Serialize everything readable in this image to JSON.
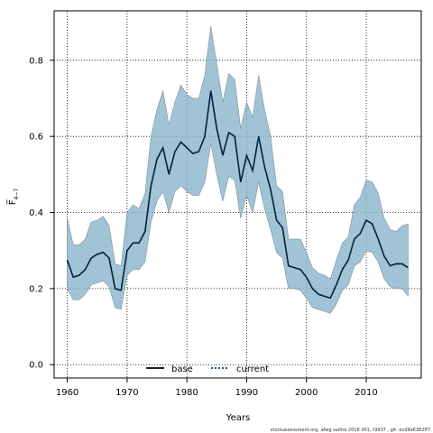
{
  "chart_data": {
    "type": "area",
    "xlabel": "Years",
    "ylabel": "F̅",
    "ylabel_sub": "4−7",
    "xlim": [
      1957.8,
      2019.2
    ],
    "ylim": [
      -0.035,
      0.93
    ],
    "xticks": [
      1960,
      1970,
      1980,
      1990,
      2000,
      2010
    ],
    "yticks": [
      0.0,
      0.2,
      0.4,
      0.6,
      0.8
    ],
    "ytick_labels": [
      "0.0",
      "0.2",
      "0.4",
      "0.6",
      "0.8"
    ],
    "grid": true,
    "legend_position": "bottom",
    "x": [
      1960,
      1961,
      1962,
      1963,
      1964,
      1965,
      1966,
      1967,
      1968,
      1969,
      1970,
      1971,
      1972,
      1973,
      1974,
      1975,
      1976,
      1977,
      1978,
      1979,
      1980,
      1981,
      1982,
      1983,
      1984,
      1985,
      1986,
      1987,
      1988,
      1989,
      1990,
      1991,
      1992,
      1993,
      1994,
      1995,
      1996,
      1997,
      1998,
      1999,
      2000,
      2001,
      2002,
      2003,
      2004,
      2005,
      2006,
      2007,
      2008,
      2009,
      2010,
      2011,
      2012,
      2013,
      2014,
      2015,
      2016,
      2017
    ],
    "series": [
      {
        "name": "base",
        "style": "solid",
        "color": "#000000",
        "values": [
          0.275,
          0.23,
          0.235,
          0.25,
          0.28,
          0.29,
          0.295,
          0.28,
          0.2,
          0.195,
          0.3,
          0.32,
          0.32,
          0.35,
          0.47,
          0.54,
          0.57,
          0.5,
          0.56,
          0.585,
          0.57,
          0.555,
          0.56,
          0.6,
          0.72,
          0.62,
          0.55,
          0.61,
          0.6,
          0.48,
          0.55,
          0.51,
          0.6,
          0.52,
          0.46,
          0.38,
          0.36,
          0.26,
          0.255,
          0.25,
          0.23,
          0.2,
          0.185,
          0.18,
          0.175,
          0.21,
          0.25,
          0.275,
          0.33,
          0.345,
          0.38,
          0.37,
          0.33,
          0.285,
          0.26,
          0.265,
          0.265,
          0.255
        ]
      },
      {
        "name": "current",
        "style": "dotted",
        "color": "#0a3d62",
        "values": [
          0.275,
          0.23,
          0.235,
          0.25,
          0.28,
          0.29,
          0.295,
          0.28,
          0.2,
          0.195,
          0.3,
          0.32,
          0.32,
          0.35,
          0.47,
          0.54,
          0.57,
          0.5,
          0.56,
          0.585,
          0.57,
          0.555,
          0.56,
          0.6,
          0.72,
          0.62,
          0.55,
          0.61,
          0.6,
          0.48,
          0.55,
          0.51,
          0.6,
          0.52,
          0.46,
          0.38,
          0.36,
          0.26,
          0.255,
          0.25,
          0.23,
          0.2,
          0.185,
          0.18,
          0.175,
          0.21,
          0.25,
          0.275,
          0.33,
          0.345,
          0.38,
          0.37,
          0.33,
          0.285,
          0.26,
          0.265,
          0.265,
          0.255
        ]
      }
    ],
    "band": {
      "color": "#8ab4cc",
      "upper": [
        0.385,
        0.315,
        0.315,
        0.33,
        0.375,
        0.38,
        0.39,
        0.365,
        0.265,
        0.26,
        0.4,
        0.42,
        0.41,
        0.45,
        0.6,
        0.67,
        0.72,
        0.63,
        0.69,
        0.735,
        0.71,
        0.7,
        0.7,
        0.76,
        0.89,
        0.79,
        0.69,
        0.765,
        0.75,
        0.62,
        0.69,
        0.65,
        0.76,
        0.67,
        0.6,
        0.47,
        0.455,
        0.33,
        0.33,
        0.33,
        0.295,
        0.255,
        0.24,
        0.235,
        0.225,
        0.275,
        0.32,
        0.335,
        0.42,
        0.44,
        0.485,
        0.48,
        0.45,
        0.385,
        0.355,
        0.35,
        0.365,
        0.37
      ],
      "lower": [
        0.2,
        0.17,
        0.17,
        0.185,
        0.21,
        0.215,
        0.22,
        0.205,
        0.15,
        0.145,
        0.235,
        0.25,
        0.25,
        0.27,
        0.375,
        0.43,
        0.455,
        0.4,
        0.455,
        0.47,
        0.455,
        0.445,
        0.445,
        0.48,
        0.58,
        0.5,
        0.43,
        0.495,
        0.485,
        0.385,
        0.445,
        0.4,
        0.48,
        0.41,
        0.355,
        0.295,
        0.28,
        0.2,
        0.2,
        0.195,
        0.175,
        0.15,
        0.145,
        0.14,
        0.135,
        0.16,
        0.195,
        0.21,
        0.26,
        0.27,
        0.3,
        0.295,
        0.27,
        0.225,
        0.205,
        0.2,
        0.2,
        0.18
      ]
    }
  },
  "footer": "stockassessment.org, afwg saithe 2018 001, r9937 , git: ecd9e6382ff7"
}
